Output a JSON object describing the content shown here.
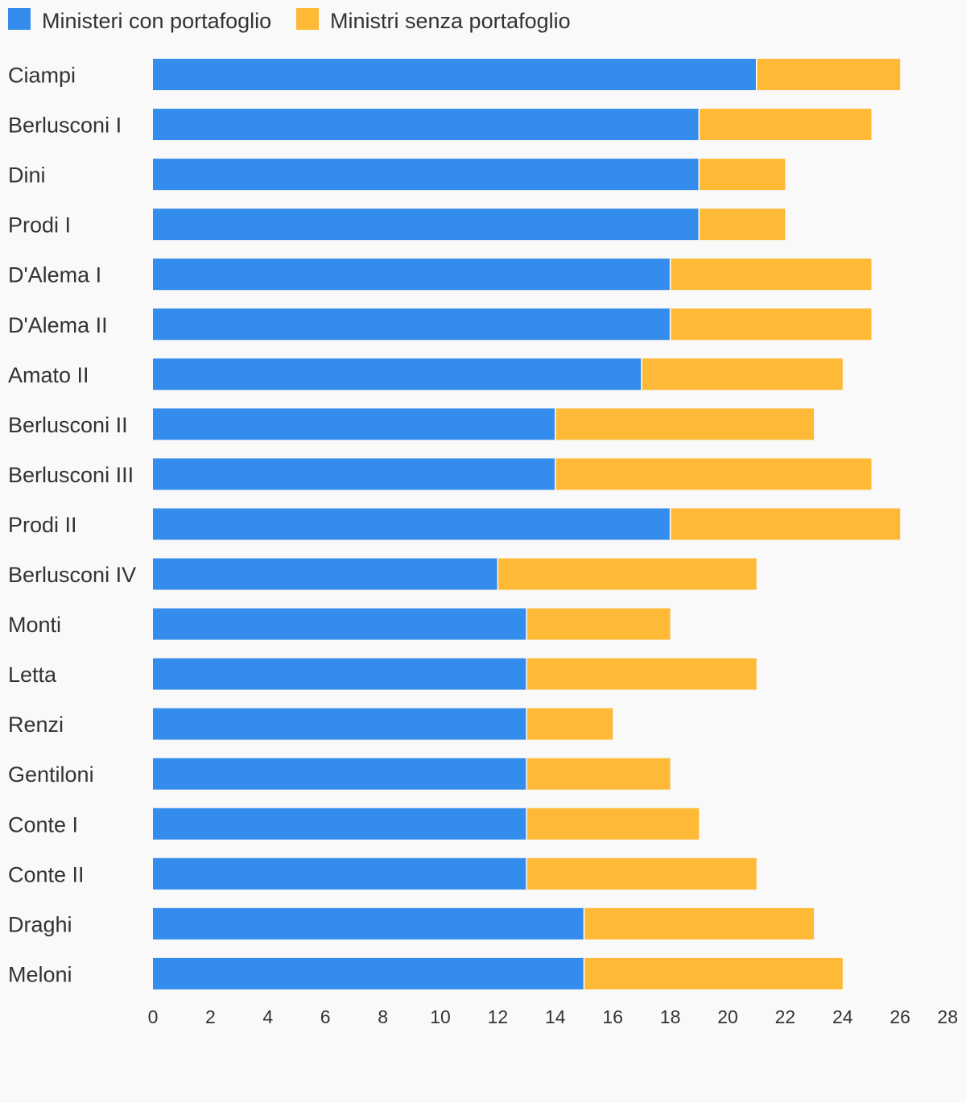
{
  "chart_data": {
    "type": "bar",
    "orientation": "horizontal",
    "stacked": true,
    "categories": [
      "Ciampi",
      "Berlusconi I",
      "Dini",
      "Prodi I",
      "D'Alema I",
      "D'Alema II",
      "Amato II",
      "Berlusconi II",
      "Berlusconi III",
      "Prodi II",
      "Berlusconi IV",
      "Monti",
      "Letta",
      "Renzi",
      "Gentiloni",
      "Conte I",
      "Conte II",
      "Draghi",
      "Meloni"
    ],
    "series": [
      {
        "name": "Ministeri con portafoglio",
        "color": "#348cec",
        "values": [
          21,
          19,
          19,
          19,
          18,
          18,
          17,
          14,
          14,
          18,
          12,
          13,
          13,
          13,
          13,
          13,
          13,
          15,
          15
        ]
      },
      {
        "name": "Ministri senza portafoglio",
        "color": "#feb937",
        "values": [
          5,
          6,
          3,
          3,
          7,
          7,
          7,
          9,
          11,
          8,
          9,
          5,
          8,
          3,
          5,
          6,
          8,
          8,
          9
        ]
      }
    ],
    "xlim": [
      0,
      28
    ],
    "xticks": [
      0,
      2,
      4,
      6,
      8,
      10,
      12,
      14,
      16,
      18,
      20,
      22,
      24,
      26,
      28
    ],
    "title": "",
    "xlabel": "",
    "ylabel": "",
    "legend_position": "top-left",
    "grid": false
  }
}
